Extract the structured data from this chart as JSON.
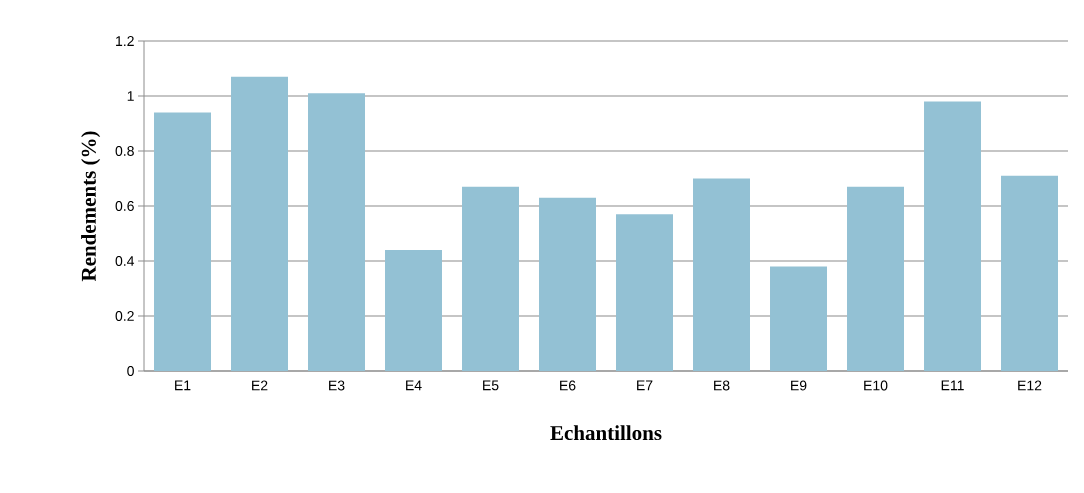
{
  "chart_data": {
    "type": "bar",
    "xlabel": "Echantillons",
    "ylabel": "Rendements (%)",
    "categories": [
      "E1",
      "E2",
      "E3",
      "E4",
      "E5",
      "E6",
      "E7",
      "E8",
      "E9",
      "E10",
      "E11",
      "E12"
    ],
    "values": [
      0.94,
      1.07,
      1.01,
      0.44,
      0.67,
      0.63,
      0.57,
      0.7,
      0.38,
      0.67,
      0.98,
      0.71
    ],
    "color": "#93c1d4",
    "ylim": [
      0,
      1.2
    ],
    "yticks": [
      0,
      0.2,
      0.4,
      0.6,
      0.8,
      1,
      1.2
    ],
    "grid": "y"
  }
}
